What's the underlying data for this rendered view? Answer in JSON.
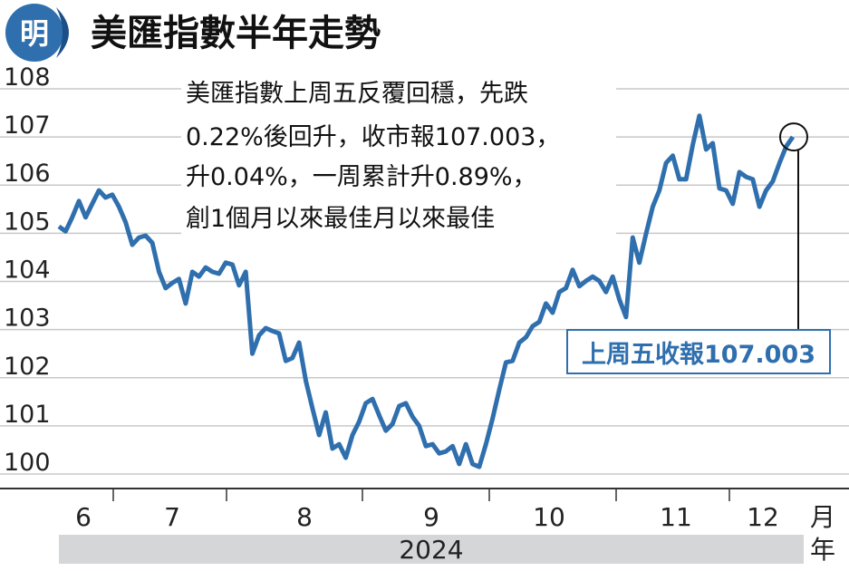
{
  "chart_data": {
    "type": "line",
    "title": "美匯指數半年走勢",
    "logo": "明",
    "annotation": [
      "美匯指數上周五反覆回穩，先跌",
      "0.22%後回升，收市報107.003，",
      "升0.04%，一周累計升0.89%，",
      "創1個月以來最佳月以來最佳"
    ],
    "callout": "上周五收報107.003",
    "months": [
      "6",
      "7",
      "8",
      "9",
      "10",
      "11",
      "12"
    ],
    "x_unit": "月",
    "year": "2024",
    "year_unit": "年",
    "ylim": [
      99.7,
      108.3
    ],
    "yticks": [
      100,
      101,
      102,
      103,
      104,
      105,
      106,
      107,
      108
    ],
    "grid": true,
    "series": [
      {
        "color": "#2f6fae",
        "values": [
          105.14,
          105.04,
          105.33,
          105.67,
          105.33,
          105.61,
          105.89,
          105.74,
          105.8,
          105.55,
          105.23,
          104.76,
          104.91,
          104.95,
          104.8,
          104.2,
          103.86,
          103.97,
          104.05,
          103.54,
          104.2,
          104.1,
          104.29,
          104.2,
          104.16,
          104.39,
          104.35,
          103.92,
          104.2,
          102.5,
          102.88,
          103.03,
          102.97,
          102.92,
          102.35,
          102.41,
          102.73,
          101.94,
          101.37,
          100.81,
          101.28,
          100.53,
          100.62,
          100.34,
          100.81,
          101.09,
          101.47,
          101.56,
          101.22,
          100.9,
          101.04,
          101.41,
          101.47,
          101.19,
          101.0,
          100.58,
          100.62,
          100.43,
          100.47,
          100.58,
          100.21,
          100.62,
          100.21,
          100.15,
          100.62,
          101.15,
          101.75,
          102.32,
          102.35,
          102.73,
          102.84,
          103.07,
          103.16,
          103.54,
          103.35,
          103.78,
          103.86,
          104.24,
          103.9,
          104.01,
          104.1,
          104.01,
          103.78,
          104.1,
          103.63,
          103.26,
          104.91,
          104.39,
          104.99,
          105.55,
          105.89,
          106.46,
          106.61,
          106.12,
          106.12,
          106.83,
          107.44,
          106.74,
          106.87,
          105.93,
          105.89,
          105.61,
          106.27,
          106.17,
          106.12,
          105.55,
          105.89,
          106.08,
          106.46,
          106.8,
          107.0
        ]
      }
    ]
  }
}
